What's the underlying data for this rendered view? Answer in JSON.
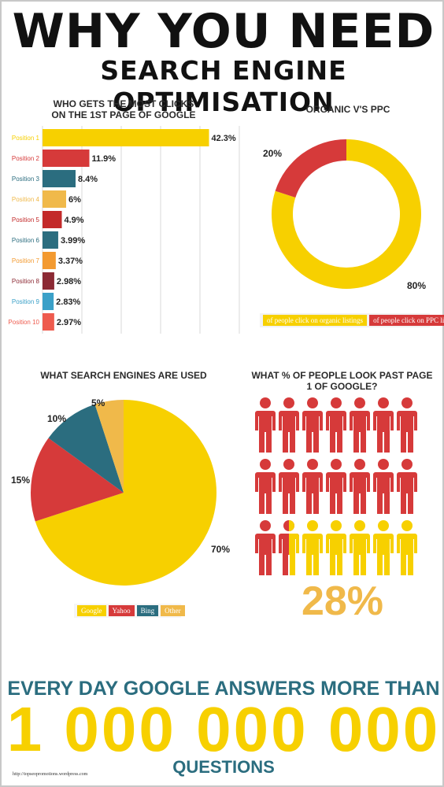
{
  "header": {
    "title_line1": "WHY YOU NEED",
    "title_line2": "SEARCH ENGINE OPTIMISATION"
  },
  "clicks_chart": {
    "title_line1": "WHO GETS THE MOST CLICKS",
    "title_line2": "ON THE 1ST PAGE OF GOOGLE"
  },
  "organic_chart": {
    "title": "ORGANIC V'S PPC",
    "legend": [
      {
        "label": "of people click on organic listings",
        "color": "#f7d000"
      },
      {
        "label": "of people click on PPC listings",
        "color": "#d63a3a"
      }
    ]
  },
  "engines_chart": {
    "title": "WHAT SEARCH ENGINES ARE USED",
    "legend": [
      {
        "label": "Google",
        "color": "#f7d000"
      },
      {
        "label": "Yahoo",
        "color": "#d63a3a"
      },
      {
        "label": "Bing",
        "color": "#2b6d7f"
      },
      {
        "label": "Other",
        "color": "#f0b94a"
      }
    ]
  },
  "people_chart": {
    "title_line1": "WHAT % OF PEOPLE LOOK PAST PAGE",
    "title_line2": "1 OF GOOGLE?",
    "total_people": 21,
    "highlight_fraction": 0.28,
    "base_color": "#d63a3a",
    "highlight_color": "#f7d000",
    "percent_label": "28%"
  },
  "footer": {
    "line1": "EVERY DAY GOOGLE ANSWERS MORE THAN",
    "line2": "1 000 000 000",
    "line3": "QUESTIONS",
    "credit": "http://topseopromotions.wordpress.com"
  },
  "chart_data": [
    {
      "type": "bar",
      "orientation": "horizontal",
      "title": "WHO GETS THE MOST CLICKS ON THE 1ST PAGE OF GOOGLE",
      "categories": [
        "Position 1",
        "Position 2",
        "Position 3",
        "Position 4",
        "Position 5",
        "Position 6",
        "Position 7",
        "Position 8",
        "Position 9",
        "Position 10"
      ],
      "values": [
        42.3,
        11.9,
        8.4,
        6,
        4.9,
        3.99,
        3.37,
        2.98,
        2.83,
        2.97
      ],
      "value_labels": [
        "42.3%",
        "11.9%",
        "8.4%",
        "6%",
        "4.9%",
        "3.99%",
        "3.37%",
        "2.98%",
        "2.83%",
        "2.97%"
      ],
      "colors": [
        "#f7d000",
        "#d63a3a",
        "#2b6d7f",
        "#f0b94a",
        "#c32a2a",
        "#2b6d7f",
        "#f39a30",
        "#8c2a34",
        "#3aa0c8",
        "#ee5b4e"
      ],
      "xlim": [
        0,
        50
      ],
      "grid": true
    },
    {
      "type": "pie",
      "style": "donut",
      "title": "ORGANIC V'S PPC",
      "categories": [
        "of people click on organic listings",
        "of people click on PPC listings"
      ],
      "values": [
        80,
        20
      ],
      "value_labels": [
        "80%",
        "20%"
      ],
      "colors": [
        "#f7d000",
        "#d63a3a"
      ]
    },
    {
      "type": "pie",
      "title": "WHAT SEARCH ENGINES ARE USED",
      "categories": [
        "Google",
        "Yahoo",
        "Bing",
        "Other"
      ],
      "values": [
        70,
        15,
        10,
        5
      ],
      "value_labels": [
        "70%",
        "15%",
        "10%",
        "5%"
      ],
      "colors": [
        "#f7d000",
        "#d63a3a",
        "#2b6d7f",
        "#f0b94a"
      ]
    }
  ]
}
